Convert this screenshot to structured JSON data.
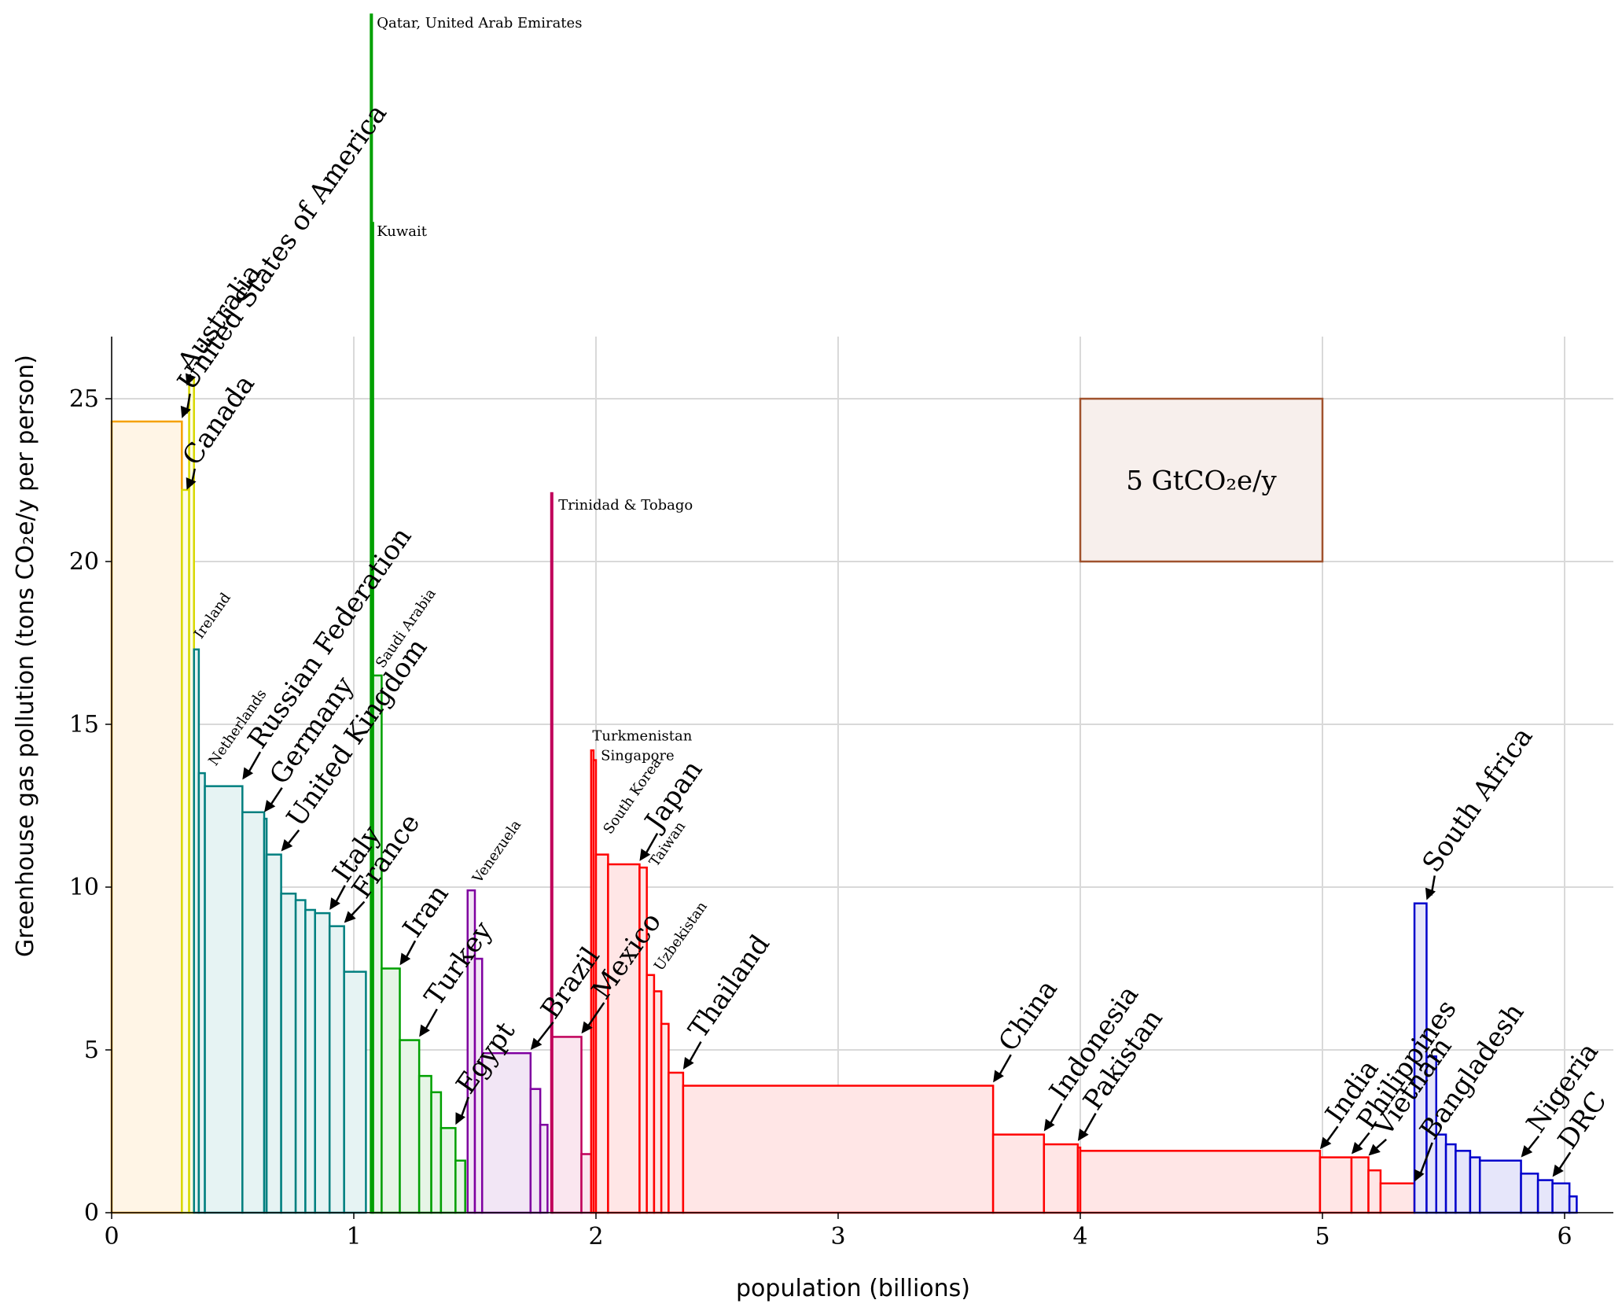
{
  "chart_data": {
    "type": "bar",
    "xlabel": "population (billions)",
    "ylabel": "Greenhouse gas pollution (tons CO₂e/y per person)",
    "xlim": [
      0,
      6.2
    ],
    "ylim": [
      0,
      27
    ],
    "xticks": [
      "0",
      "1",
      "2",
      "3",
      "4",
      "5",
      "6"
    ],
    "yticks": [
      "0",
      "5",
      "10",
      "15",
      "20",
      "25"
    ],
    "grid": true,
    "scale_box": {
      "label": "5 GtCO₂e/y",
      "x": [
        4,
        5
      ],
      "y": [
        20,
        25
      ]
    },
    "blocks": [
      {
        "name": "Australia",
        "x0": 0.0,
        "x1": 0.29,
        "y": 24.3,
        "group": "orange"
      },
      {
        "name": "United States of America",
        "x0": 0.29,
        "x1": 0.32,
        "y": 22.2,
        "group": "yellow"
      },
      {
        "name": "Canada",
        "x0": 0.32,
        "x1": 0.34,
        "y": 25.6,
        "group": "yellow"
      },
      {
        "name": "Ireland",
        "x0": 0.34,
        "x1": 0.36,
        "y": 17.3,
        "group": "teal"
      },
      {
        "name": "Netherlands",
        "x0": 0.36,
        "x1": 0.385,
        "y": 13.5,
        "group": "teal"
      },
      {
        "name": "Russian Federation",
        "x0": 0.385,
        "x1": 0.54,
        "y": 13.1,
        "group": "teal"
      },
      {
        "name": "Germany",
        "x0": 0.54,
        "x1": 0.63,
        "y": 12.3,
        "group": "teal"
      },
      {
        "name": "",
        "x0": 0.63,
        "x1": 0.64,
        "y": 12.1,
        "group": "teal"
      },
      {
        "name": "United Kingdom",
        "x0": 0.64,
        "x1": 0.7,
        "y": 11.0,
        "group": "teal"
      },
      {
        "name": "",
        "x0": 0.7,
        "x1": 0.76,
        "y": 9.8,
        "group": "teal"
      },
      {
        "name": "",
        "x0": 0.76,
        "x1": 0.8,
        "y": 9.6,
        "group": "teal"
      },
      {
        "name": "",
        "x0": 0.8,
        "x1": 0.84,
        "y": 9.3,
        "group": "teal"
      },
      {
        "name": "Italy",
        "x0": 0.84,
        "x1": 0.9,
        "y": 9.2,
        "group": "teal"
      },
      {
        "name": "France",
        "x0": 0.9,
        "x1": 0.96,
        "y": 8.8,
        "group": "teal"
      },
      {
        "name": "",
        "x0": 0.96,
        "x1": 1.05,
        "y": 7.4,
        "group": "teal"
      },
      {
        "name": "Qatar, United Arab Emirates",
        "x0": 1.07,
        "x1": 1.075,
        "y": 36.8,
        "group": "green"
      },
      {
        "name": "Kuwait",
        "x0": 1.075,
        "x1": 1.08,
        "y": 30.4,
        "group": "green"
      },
      {
        "name": "Saudi Arabia",
        "x0": 1.08,
        "x1": 1.115,
        "y": 16.5,
        "group": "green"
      },
      {
        "name": "Iran",
        "x0": 1.115,
        "x1": 1.19,
        "y": 7.5,
        "group": "green"
      },
      {
        "name": "Turkey",
        "x0": 1.19,
        "x1": 1.27,
        "y": 5.3,
        "group": "green"
      },
      {
        "name": "",
        "x0": 1.27,
        "x1": 1.32,
        "y": 4.2,
        "group": "green"
      },
      {
        "name": "",
        "x0": 1.32,
        "x1": 1.36,
        "y": 3.7,
        "group": "green"
      },
      {
        "name": "Egypt",
        "x0": 1.36,
        "x1": 1.42,
        "y": 2.6,
        "group": "green"
      },
      {
        "name": "",
        "x0": 1.42,
        "x1": 1.46,
        "y": 1.6,
        "group": "green"
      },
      {
        "name": "Venezuela",
        "x0": 1.47,
        "x1": 1.5,
        "y": 9.9,
        "group": "purple"
      },
      {
        "name": "",
        "x0": 1.5,
        "x1": 1.53,
        "y": 7.8,
        "group": "purple"
      },
      {
        "name": "Brazil",
        "x0": 1.53,
        "x1": 1.73,
        "y": 4.9,
        "group": "purple"
      },
      {
        "name": "",
        "x0": 1.73,
        "x1": 1.77,
        "y": 3.8,
        "group": "purple"
      },
      {
        "name": "",
        "x0": 1.77,
        "x1": 1.8,
        "y": 2.7,
        "group": "purple"
      },
      {
        "name": "Trinidad & Tobago",
        "x0": 1.815,
        "x1": 1.82,
        "y": 22.1,
        "group": "crimson"
      },
      {
        "name": "Mexico",
        "x0": 1.82,
        "x1": 1.94,
        "y": 5.4,
        "group": "crimson"
      },
      {
        "name": "",
        "x0": 1.94,
        "x1": 1.98,
        "y": 1.8,
        "group": "crimson"
      },
      {
        "name": "Turkmenistan",
        "x0": 1.98,
        "x1": 1.99,
        "y": 14.2,
        "group": "red"
      },
      {
        "name": "Singapore",
        "x0": 1.99,
        "x1": 2.0,
        "y": 13.9,
        "group": "red"
      },
      {
        "name": "South Korea",
        "x0": 2.0,
        "x1": 2.05,
        "y": 11.0,
        "group": "red"
      },
      {
        "name": "Japan",
        "x0": 2.05,
        "x1": 2.18,
        "y": 10.7,
        "group": "red"
      },
      {
        "name": "Taiwan",
        "x0": 2.18,
        "x1": 2.21,
        "y": 10.6,
        "group": "red"
      },
      {
        "name": "Uzbekistan",
        "x0": 2.21,
        "x1": 2.24,
        "y": 7.3,
        "group": "red"
      },
      {
        "name": "",
        "x0": 2.24,
        "x1": 2.27,
        "y": 6.8,
        "group": "red"
      },
      {
        "name": "",
        "x0": 2.27,
        "x1": 2.3,
        "y": 5.8,
        "group": "red"
      },
      {
        "name": "Thailand",
        "x0": 2.3,
        "x1": 2.36,
        "y": 4.3,
        "group": "red"
      },
      {
        "name": "China",
        "x0": 2.36,
        "x1": 3.64,
        "y": 3.9,
        "group": "red"
      },
      {
        "name": "Indonesia",
        "x0": 3.64,
        "x1": 3.85,
        "y": 2.4,
        "group": "red"
      },
      {
        "name": "Pakistan",
        "x0": 3.85,
        "x1": 3.99,
        "y": 2.1,
        "group": "red"
      },
      {
        "name": "",
        "x0": 3.99,
        "x1": 4.0,
        "y": 2.0,
        "group": "red"
      },
      {
        "name": "India",
        "x0": 4.0,
        "x1": 4.99,
        "y": 1.9,
        "group": "red"
      },
      {
        "name": "Philippines",
        "x0": 4.99,
        "x1": 5.12,
        "y": 1.7,
        "group": "red"
      },
      {
        "name": "Vietnam",
        "x0": 5.12,
        "x1": 5.19,
        "y": 1.7,
        "group": "red"
      },
      {
        "name": "",
        "x0": 5.19,
        "x1": 5.24,
        "y": 1.3,
        "group": "red"
      },
      {
        "name": "Bangladesh",
        "x0": 5.24,
        "x1": 5.38,
        "y": 0.9,
        "group": "red"
      },
      {
        "name": "South Africa",
        "x0": 5.38,
        "x1": 5.43,
        "y": 9.5,
        "group": "blue"
      },
      {
        "name": "",
        "x0": 5.43,
        "x1": 5.47,
        "y": 4.8,
        "group": "blue"
      },
      {
        "name": "",
        "x0": 5.47,
        "x1": 5.51,
        "y": 2.4,
        "group": "blue"
      },
      {
        "name": "",
        "x0": 5.51,
        "x1": 5.55,
        "y": 2.1,
        "group": "blue"
      },
      {
        "name": "",
        "x0": 5.55,
        "x1": 5.61,
        "y": 1.9,
        "group": "blue"
      },
      {
        "name": "",
        "x0": 5.61,
        "x1": 5.65,
        "y": 1.7,
        "group": "blue"
      },
      {
        "name": "Nigeria",
        "x0": 5.65,
        "x1": 5.82,
        "y": 1.6,
        "group": "blue"
      },
      {
        "name": "",
        "x0": 5.82,
        "x1": 5.89,
        "y": 1.2,
        "group": "blue"
      },
      {
        "name": "DRC",
        "x0": 5.89,
        "x1": 5.95,
        "y": 1.0,
        "group": "blue"
      },
      {
        "name": "",
        "x0": 5.95,
        "x1": 6.02,
        "y": 0.9,
        "group": "blue"
      },
      {
        "name": "",
        "x0": 6.02,
        "x1": 6.05,
        "y": 0.5,
        "group": "blue"
      }
    ],
    "labels": [
      {
        "text": "Australia",
        "x": 0.33,
        "y": 25.8,
        "size": "big",
        "angle": -55,
        "ax": 0.31,
        "ay": 25.4
      },
      {
        "text": "United States of America",
        "x": 0.33,
        "y": 25.2,
        "size": "big",
        "angle": -55,
        "ax": 0.29,
        "ay": 24.4
      },
      {
        "text": "Canada",
        "x": 0.35,
        "y": 22.9,
        "size": "big",
        "angle": -55,
        "ax": 0.31,
        "ay": 22.2
      },
      {
        "text": "Ireland",
        "x": 0.37,
        "y": 17.6,
        "size": "small",
        "angle": -55
      },
      {
        "text": "Netherlands",
        "x": 0.43,
        "y": 13.7,
        "size": "small",
        "angle": -55
      },
      {
        "text": "Russian Federation",
        "x": 0.62,
        "y": 14.2,
        "size": "big",
        "angle": -55,
        "ax": 0.54,
        "ay": 13.3
      },
      {
        "text": "Germany",
        "x": 0.71,
        "y": 13.1,
        "size": "big",
        "angle": -55,
        "ax": 0.63,
        "ay": 12.3
      },
      {
        "text": "United Kingdom",
        "x": 0.78,
        "y": 11.8,
        "size": "big",
        "angle": -55,
        "ax": 0.7,
        "ay": 11.1
      },
      {
        "text": "Italy",
        "x": 0.97,
        "y": 10.1,
        "size": "big",
        "angle": -55,
        "ax": 0.9,
        "ay": 9.3
      },
      {
        "text": "France",
        "x": 1.05,
        "y": 9.6,
        "size": "big",
        "angle": -55,
        "ax": 0.96,
        "ay": 8.9
      },
      {
        "text": "Saudi Arabia",
        "x": 1.12,
        "y": 16.7,
        "size": "small",
        "angle": -55
      },
      {
        "text": "Qatar, United Arab Emirates",
        "x": 1.095,
        "y": 36.4,
        "size": "small",
        "angle": 0
      },
      {
        "text": "Kuwait",
        "x": 1.095,
        "y": 30.0,
        "size": "small",
        "angle": 0
      },
      {
        "text": "Iran",
        "x": 1.26,
        "y": 8.4,
        "size": "big",
        "angle": -55,
        "ax": 1.19,
        "ay": 7.6
      },
      {
        "text": "Turkey",
        "x": 1.35,
        "y": 6.3,
        "size": "big",
        "angle": -55,
        "ax": 1.27,
        "ay": 5.4
      },
      {
        "text": "Egypt",
        "x": 1.48,
        "y": 3.6,
        "size": "big",
        "angle": -55,
        "ax": 1.42,
        "ay": 2.7
      },
      {
        "text": "Venezuela",
        "x": 1.52,
        "y": 10.1,
        "size": "small",
        "angle": -55
      },
      {
        "text": "Brazil",
        "x": 1.83,
        "y": 5.9,
        "size": "big",
        "angle": -55,
        "ax": 1.73,
        "ay": 5.0
      },
      {
        "text": "Trinidad & Tobago",
        "x": 1.845,
        "y": 21.6,
        "size": "small",
        "angle": 0
      },
      {
        "text": "Mexico",
        "x": 2.04,
        "y": 6.5,
        "size": "big",
        "angle": -55,
        "ax": 1.94,
        "ay": 5.5
      },
      {
        "text": "Turkmenistan",
        "x": 1.985,
        "y": 14.5,
        "size": "small",
        "angle": 0
      },
      {
        "text": "Singapore",
        "x": 2.02,
        "y": 13.9,
        "size": "small",
        "angle": 0
      },
      {
        "text": "South Korea",
        "x": 2.06,
        "y": 11.6,
        "size": "small",
        "angle": -55
      },
      {
        "text": "Japan",
        "x": 2.26,
        "y": 11.7,
        "size": "big",
        "angle": -55,
        "ax": 2.18,
        "ay": 10.8
      },
      {
        "text": "Taiwan",
        "x": 2.25,
        "y": 10.6,
        "size": "small",
        "angle": -55
      },
      {
        "text": "Uzbekistan",
        "x": 2.27,
        "y": 7.4,
        "size": "small",
        "angle": -55
      },
      {
        "text": "Thailand",
        "x": 2.44,
        "y": 5.3,
        "size": "big",
        "angle": -55,
        "ax": 2.36,
        "ay": 4.4
      },
      {
        "text": "China",
        "x": 3.72,
        "y": 4.9,
        "size": "big",
        "angle": -55,
        "ax": 3.64,
        "ay": 4.0
      },
      {
        "text": "Indonesia",
        "x": 3.93,
        "y": 3.4,
        "size": "big",
        "angle": -55,
        "ax": 3.85,
        "ay": 2.5
      },
      {
        "text": "Pakistan",
        "x": 4.07,
        "y": 3.1,
        "size": "big",
        "angle": -55,
        "ax": 3.99,
        "ay": 2.2
      },
      {
        "text": "India",
        "x": 5.07,
        "y": 2.7,
        "size": "big",
        "angle": -55,
        "ax": 4.99,
        "ay": 1.95
      },
      {
        "text": "Philippines",
        "x": 5.2,
        "y": 2.5,
        "size": "big",
        "angle": -55,
        "ax": 5.12,
        "ay": 1.8
      },
      {
        "text": "Vietnam",
        "x": 5.27,
        "y": 2.3,
        "size": "big",
        "angle": -55,
        "ax": 5.19,
        "ay": 1.75
      },
      {
        "text": "Bangladesh",
        "x": 5.46,
        "y": 2.2,
        "size": "big",
        "angle": -55,
        "ax": 5.38,
        "ay": 0.95
      },
      {
        "text": "South Africa",
        "x": 5.47,
        "y": 10.4,
        "size": "big",
        "angle": -55,
        "ax": 5.43,
        "ay": 9.6
      },
      {
        "text": "Nigeria",
        "x": 5.9,
        "y": 2.4,
        "size": "big",
        "angle": -55,
        "ax": 5.82,
        "ay": 1.7
      },
      {
        "text": "DRC",
        "x": 6.03,
        "y": 1.9,
        "size": "big",
        "angle": -55,
        "ax": 5.95,
        "ay": 1.1
      }
    ],
    "colors": {
      "orange": {
        "stroke": "#f5a000",
        "fill": "#fff5e6"
      },
      "yellow": {
        "stroke": "#d8d800",
        "fill": "#fdfde6"
      },
      "teal": {
        "stroke": "#007f7f",
        "fill": "#e6f3f3"
      },
      "green": {
        "stroke": "#00a000",
        "fill": "#e6f5e6"
      },
      "purple": {
        "stroke": "#7f00a0",
        "fill": "#f2e6f5"
      },
      "crimson": {
        "stroke": "#c0005a",
        "fill": "#fae6ef"
      },
      "red": {
        "stroke": "#ff0000",
        "fill": "#ffe6e6"
      },
      "blue": {
        "stroke": "#0000cc",
        "fill": "#e6e6fa"
      },
      "scale": {
        "stroke": "#a0522d",
        "fill": "#f7efec"
      }
    }
  }
}
